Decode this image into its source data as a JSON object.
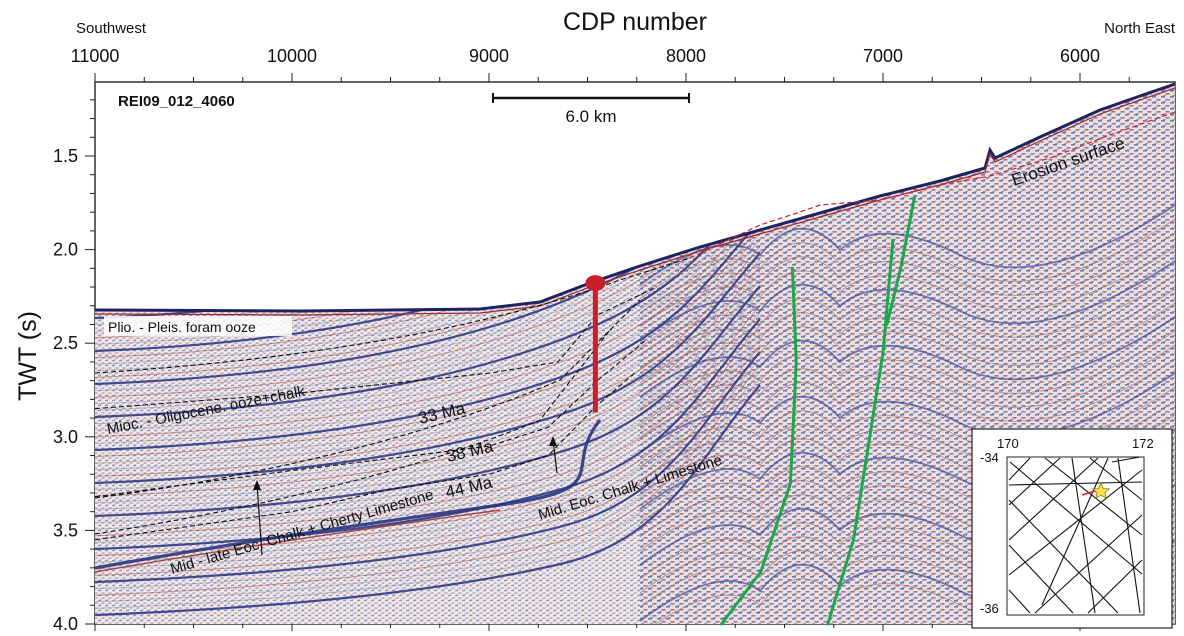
{
  "figure": {
    "top_axis_title": "CDP number",
    "left_end_label": "Southwest",
    "right_end_label": "North East",
    "y_axis_title": "TWT (s)",
    "line_id": "REI09_012_4060",
    "scale_bar_label": "6.0 km",
    "horizon_labels": {
      "ma33": "33 Ma",
      "ma38": "38 Ma",
      "ma44": "44 Ma"
    },
    "unit_labels": {
      "plio": "Plio. - Pleis. foram ooze",
      "mioc": "Mioc. - Oligocene. ooze+chalk",
      "mid_late": "Mid - late  Eoc. Chalk + Cherty Limestone",
      "mid_eoc": "Mid. Eoc. Chalk + Limestone",
      "erosion": "Erosion surface"
    },
    "colors": {
      "fault": "#1aa84a",
      "drill_site": "#c8202a",
      "erosion_surface": "#d4202a",
      "horizon": "#111111",
      "seismic_positive": "#3c4c9a",
      "seismic_negative": "#b03a3a"
    },
    "inset_map": {
      "lon_labels": [
        "170",
        "172"
      ],
      "lat_labels": [
        "-34",
        "-36"
      ],
      "site_marker": "star-icon"
    }
  },
  "chart_data": {
    "type": "seismic_section",
    "x_axis": {
      "label": "CDP number",
      "ticks": [
        11000,
        10000,
        9000,
        8000,
        7000,
        6000
      ],
      "range": [
        11000,
        5500
      ],
      "reversed": true
    },
    "y_axis": {
      "label": "TWT (s)",
      "ticks": [
        1.5,
        2.0,
        2.5,
        3.0,
        3.5,
        4.0
      ],
      "range": [
        1.1,
        4.0
      ],
      "inverted": true
    },
    "horizons": [
      {
        "label": "33 Ma",
        "points": [
          [
            11000,
            2.85
          ],
          [
            10000,
            2.77
          ],
          [
            9000,
            2.66
          ],
          [
            8650,
            2.6
          ],
          [
            8450,
            2.35
          ],
          [
            8150,
            2.2
          ]
        ]
      },
      {
        "label": "38 Ma",
        "points": [
          [
            11000,
            3.32
          ],
          [
            10500,
            3.25
          ],
          [
            10000,
            3.18
          ],
          [
            9000,
            3.05
          ],
          [
            8700,
            2.95
          ],
          [
            8450,
            2.7
          ],
          [
            8200,
            2.48
          ]
        ]
      },
      {
        "label": "44 Ma",
        "points": [
          [
            11000,
            3.55
          ],
          [
            10000,
            3.4
          ],
          [
            9500,
            3.28
          ],
          [
            9000,
            3.2
          ],
          [
            8700,
            3.1
          ],
          [
            8450,
            2.83
          ],
          [
            8250,
            2.65
          ]
        ]
      }
    ],
    "faults": [
      {
        "points": [
          [
            7820,
            4.0
          ],
          [
            7620,
            3.72
          ],
          [
            7470,
            3.25
          ],
          [
            7440,
            2.6
          ],
          [
            7460,
            2.1
          ]
        ]
      },
      {
        "points": [
          [
            7280,
            4.0
          ],
          [
            7150,
            3.55
          ],
          [
            7000,
            2.55
          ],
          [
            6950,
            1.95
          ]
        ]
      },
      {
        "points": [
          [
            6980,
            2.4
          ],
          [
            6910,
            2.1
          ],
          [
            6840,
            1.72
          ]
        ]
      }
    ],
    "drill_site": {
      "cdp": 8460,
      "twt_top": 2.19,
      "twt_bottom": 2.87
    }
  }
}
